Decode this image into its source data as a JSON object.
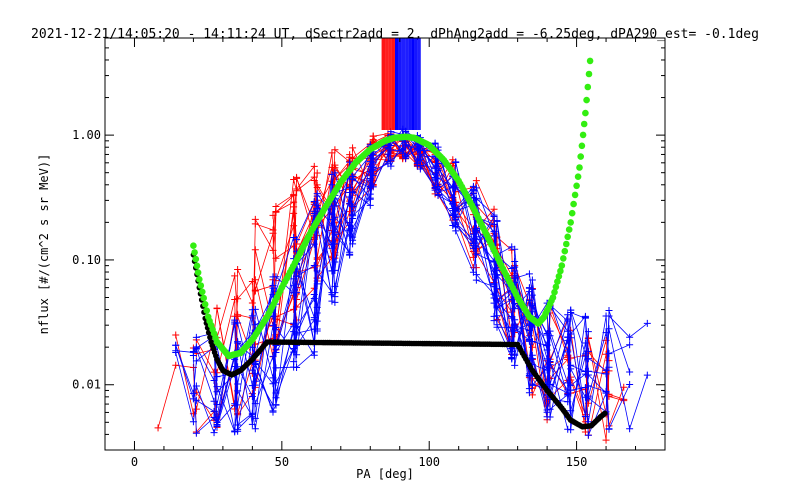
{
  "chart_data": {
    "type": "scatter",
    "title": "2021-12-21/14:05:20 - 14:11:24 UT, dSectr2add = 2, dPhAng2add = -6.25deg, dPA290_est=  -0.1deg",
    "xlabel": "PA [deg]",
    "ylabel": "nflux [#/(cm^2 s sr MeV)]",
    "xlim": [
      -10,
      180
    ],
    "ylim": [
      0.003,
      6
    ],
    "y_scale": "log",
    "grid": false,
    "x_ticks": [
      {
        "v": 0,
        "label": "0"
      },
      {
        "v": 50,
        "label": "50"
      },
      {
        "v": 100,
        "label": "100"
      },
      {
        "v": 150,
        "label": "150"
      }
    ],
    "y_ticks": [
      {
        "v": 0.01,
        "label": "0.01"
      },
      {
        "v": 0.1,
        "label": "0.10"
      },
      {
        "v": 1,
        "label": "1.00"
      }
    ],
    "colors": {
      "series_red": "#ff0000",
      "series_blue": "#0000ff",
      "fit_green": "#33ee11",
      "fit_black": "#000000"
    },
    "fits": {
      "green": [
        [
          20,
          0.13
        ],
        [
          22,
          0.07
        ],
        [
          25,
          0.035
        ],
        [
          28,
          0.022
        ],
        [
          32,
          0.017
        ],
        [
          36,
          0.018
        ],
        [
          40,
          0.023
        ],
        [
          45,
          0.035
        ],
        [
          50,
          0.06
        ],
        [
          55,
          0.1
        ],
        [
          60,
          0.17
        ],
        [
          65,
          0.27
        ],
        [
          70,
          0.42
        ],
        [
          75,
          0.6
        ],
        [
          80,
          0.77
        ],
        [
          85,
          0.9
        ],
        [
          88,
          0.95
        ],
        [
          92,
          0.97
        ],
        [
          95,
          0.95
        ],
        [
          100,
          0.83
        ],
        [
          105,
          0.63
        ],
        [
          110,
          0.43
        ],
        [
          115,
          0.26
        ],
        [
          120,
          0.15
        ],
        [
          125,
          0.085
        ],
        [
          130,
          0.05
        ],
        [
          134,
          0.035
        ],
        [
          137,
          0.031
        ],
        [
          139,
          0.035
        ],
        [
          142,
          0.05
        ],
        [
          145,
          0.09
        ],
        [
          148,
          0.2
        ],
        [
          151,
          0.55
        ],
        [
          153,
          1.5
        ],
        [
          155,
          5
        ]
      ],
      "black": [
        [
          20,
          0.11
        ],
        [
          22,
          0.06
        ],
        [
          24,
          0.034
        ],
        [
          26,
          0.022
        ],
        [
          28,
          0.016
        ],
        [
          30,
          0.013
        ],
        [
          33,
          0.012
        ],
        [
          36,
          0.013
        ],
        [
          40,
          0.016
        ],
        [
          45,
          0.022
        ],
        [
          130,
          0.021
        ],
        [
          135,
          0.013
        ],
        [
          140,
          0.009
        ],
        [
          145,
          0.0065
        ],
        [
          148,
          0.0052
        ],
        [
          152,
          0.0046
        ],
        [
          155,
          0.0047
        ],
        [
          158,
          0.0055
        ],
        [
          160,
          0.006
        ]
      ]
    },
    "envelope": {
      "red": [
        [
          8,
          0.0035,
          0.027
        ],
        [
          20,
          0.004,
          0.03
        ],
        [
          30,
          0.004,
          0.05
        ],
        [
          40,
          0.008,
          0.2
        ],
        [
          50,
          0.02,
          0.4
        ],
        [
          60,
          0.05,
          0.6
        ],
        [
          70,
          0.12,
          0.85
        ],
        [
          80,
          0.35,
          1.0
        ],
        [
          85,
          0.55,
          1.1
        ],
        [
          90,
          0.65,
          1.05
        ],
        [
          95,
          0.6,
          0.95
        ],
        [
          100,
          0.4,
          0.85
        ],
        [
          110,
          0.15,
          0.6
        ],
        [
          120,
          0.05,
          0.35
        ],
        [
          130,
          0.012,
          0.1
        ],
        [
          140,
          0.005,
          0.05
        ],
        [
          150,
          0.004,
          0.03
        ],
        [
          160,
          0.0035,
          0.026
        ],
        [
          165,
          0.005,
          0.022
        ]
      ],
      "blue": [
        [
          8,
          0.008,
          0.02
        ],
        [
          20,
          0.004,
          0.025
        ],
        [
          30,
          0.004,
          0.03
        ],
        [
          40,
          0.004,
          0.04
        ],
        [
          50,
          0.006,
          0.1
        ],
        [
          60,
          0.015,
          0.3
        ],
        [
          70,
          0.06,
          0.6
        ],
        [
          80,
          0.25,
          0.9
        ],
        [
          85,
          0.45,
          1.05
        ],
        [
          90,
          0.65,
          1.2
        ],
        [
          95,
          0.6,
          1.05
        ],
        [
          100,
          0.45,
          0.95
        ],
        [
          110,
          0.15,
          0.6
        ],
        [
          120,
          0.04,
          0.3
        ],
        [
          130,
          0.012,
          0.12
        ],
        [
          140,
          0.005,
          0.06
        ],
        [
          150,
          0.004,
          0.04
        ],
        [
          160,
          0.0037,
          0.04
        ],
        [
          174,
          0.0035,
          0.06
        ]
      ]
    },
    "spike_region": {
      "x_range": [
        84,
        97
      ],
      "y_bottom": 1.1
    },
    "red_series_count": 28,
    "blue_series_count": 38,
    "x_red": [
      7,
      8,
      14,
      20,
      21,
      27,
      28,
      34,
      35,
      40,
      41,
      47,
      48,
      54,
      55,
      61,
      62,
      67,
      68,
      73,
      74,
      80,
      81,
      86,
      87,
      91,
      92,
      96,
      97,
      102,
      103,
      108,
      109,
      115,
      116,
      122,
      123,
      128,
      129,
      134,
      135,
      140,
      141,
      147,
      148,
      153,
      154,
      160,
      161,
      166
    ],
    "x_blue": [
      7,
      8,
      14,
      20,
      21,
      27,
      28,
      34,
      35,
      40,
      41,
      47,
      48,
      54,
      55,
      61,
      62,
      67,
      68,
      73,
      74,
      80,
      81,
      86,
      87,
      91,
      92,
      96,
      97,
      102,
      103,
      108,
      109,
      115,
      116,
      122,
      123,
      128,
      129,
      134,
      135,
      140,
      141,
      147,
      148,
      153,
      154,
      160,
      161,
      168,
      174
    ]
  }
}
